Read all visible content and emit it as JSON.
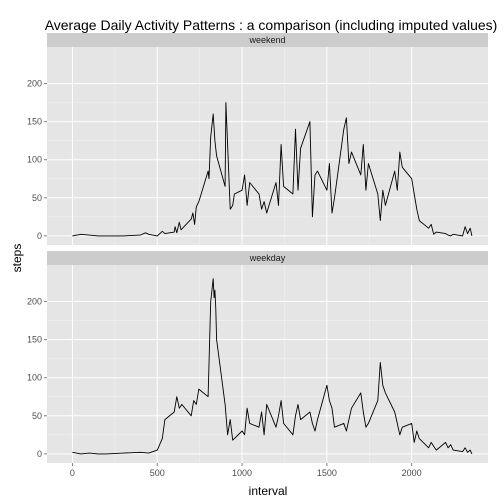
{
  "chart_data": {
    "type": "line",
    "title": "Average Daily Activity Patterns : a comparison (including imputed values)",
    "xlabel": "interval",
    "ylabel": "steps",
    "xlim": [
      -150,
      2450
    ],
    "ylim": [
      -12,
      248
    ],
    "x_ticks": [
      0,
      500,
      1000,
      1500,
      2000
    ],
    "y_ticks": [
      0,
      50,
      100,
      150,
      200
    ],
    "grid": true,
    "facets": [
      {
        "label": "weekend",
        "x": [
          0,
          50,
          100,
          150,
          200,
          300,
          400,
          430,
          450,
          500,
          530,
          545,
          600,
          605,
          615,
          630,
          640,
          700,
          710,
          720,
          730,
          745,
          755,
          800,
          805,
          815,
          830,
          840,
          850,
          900,
          905,
          915,
          930,
          945,
          955,
          1000,
          1015,
          1030,
          1045,
          1100,
          1115,
          1130,
          1145,
          1200,
          1215,
          1230,
          1245,
          1300,
          1315,
          1330,
          1345,
          1400,
          1415,
          1430,
          1445,
          1500,
          1515,
          1530,
          1545,
          1600,
          1615,
          1630,
          1645,
          1700,
          1715,
          1730,
          1745,
          1800,
          1815,
          1830,
          1845,
          1900,
          1915,
          1930,
          1945,
          2000,
          2015,
          2030,
          2045,
          2100,
          2115,
          2130,
          2145,
          2200,
          2215,
          2230,
          2245,
          2300,
          2315,
          2330,
          2345,
          2355
        ],
        "y": [
          0,
          2,
          1,
          0,
          0,
          0,
          1,
          4,
          2,
          0,
          6,
          3,
          5,
          12,
          4,
          18,
          8,
          22,
          30,
          15,
          38,
          45,
          52,
          85,
          75,
          130,
          160,
          125,
          105,
          65,
          175,
          120,
          35,
          40,
          55,
          60,
          80,
          40,
          70,
          55,
          35,
          45,
          30,
          70,
          40,
          120,
          65,
          55,
          140,
          60,
          115,
          150,
          25,
          80,
          85,
          60,
          95,
          30,
          50,
          140,
          155,
          95,
          110,
          80,
          120,
          60,
          95,
          55,
          20,
          60,
          40,
          85,
          60,
          110,
          90,
          75,
          55,
          35,
          20,
          10,
          15,
          2,
          5,
          3,
          1,
          0,
          2,
          0,
          12,
          3,
          10,
          0
        ],
        "color": "#000000"
      },
      {
        "label": "weekday",
        "x": [
          0,
          50,
          100,
          150,
          200,
          300,
          400,
          450,
          500,
          530,
          545,
          600,
          615,
          630,
          645,
          700,
          715,
          730,
          745,
          800,
          815,
          830,
          835,
          840,
          845,
          850,
          900,
          915,
          930,
          945,
          1000,
          1015,
          1030,
          1045,
          1100,
          1115,
          1130,
          1145,
          1200,
          1215,
          1230,
          1245,
          1300,
          1315,
          1330,
          1345,
          1400,
          1415,
          1430,
          1445,
          1500,
          1515,
          1530,
          1545,
          1600,
          1615,
          1630,
          1645,
          1700,
          1715,
          1730,
          1745,
          1800,
          1815,
          1830,
          1845,
          1900,
          1915,
          1930,
          1945,
          2000,
          2015,
          2030,
          2045,
          2100,
          2115,
          2130,
          2145,
          2200,
          2215,
          2230,
          2245,
          2300,
          2315,
          2330,
          2345,
          2355
        ],
        "y": [
          2,
          0,
          1,
          0,
          0,
          1,
          2,
          1,
          5,
          20,
          45,
          55,
          75,
          60,
          65,
          50,
          70,
          65,
          85,
          75,
          200,
          230,
          205,
          215,
          190,
          150,
          65,
          25,
          45,
          18,
          30,
          25,
          60,
          40,
          35,
          55,
          25,
          65,
          35,
          50,
          70,
          40,
          25,
          50,
          65,
          45,
          55,
          40,
          30,
          45,
          90,
          70,
          60,
          35,
          40,
          30,
          45,
          60,
          80,
          55,
          35,
          40,
          70,
          120,
          90,
          80,
          55,
          40,
          25,
          35,
          40,
          15,
          30,
          20,
          8,
          15,
          10,
          5,
          15,
          8,
          12,
          5,
          3,
          8,
          2,
          5,
          0
        ],
        "color": "#000000"
      }
    ]
  }
}
